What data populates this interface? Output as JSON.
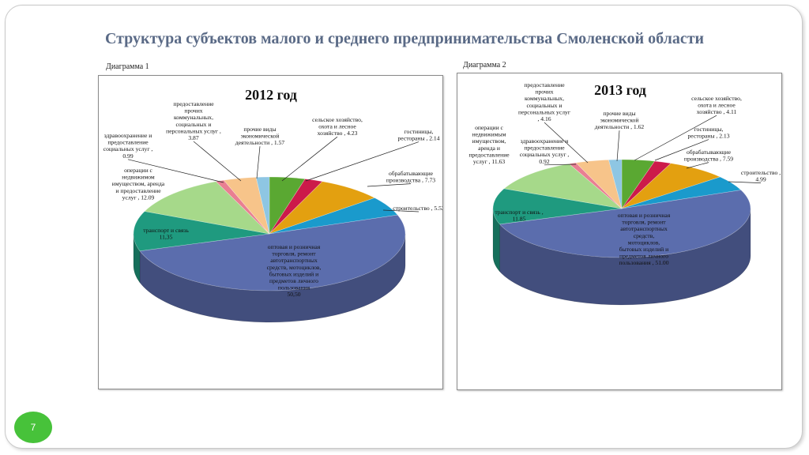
{
  "title": "Структура субъектов малого и среднего предпринимательства Смоленской области",
  "page_number": "7",
  "chart_data": [
    {
      "type": "pie",
      "caption": "Диаграмма 1",
      "title": "2012 год",
      "slices": [
        {
          "label": "сельское хозяйство, охота и лесное хозяйство , 4.23",
          "value": 4.23,
          "color": "#5aa832"
        },
        {
          "label": "гостиницы, рестораны , 2.14",
          "value": 2.14,
          "color": "#cc1a4a"
        },
        {
          "label": "обрабатывающие производства , 7.73",
          "value": 7.73,
          "color": "#e3a010"
        },
        {
          "label": "строительство , 5.52",
          "value": 5.52,
          "color": "#1a9acc"
        },
        {
          "label": "оптовая и розничная торговля, ремонт автотранспортных средств, мотоциклов, бытовых изделий и предметов личного пользования 50,50",
          "value": 50.5,
          "color": "#5b6dad"
        },
        {
          "label": "транспорт и связь 11,35",
          "value": 11.35,
          "color": "#1f9a7f"
        },
        {
          "label": "операции с недвижимом имуществом, аренда и предоставление услуг , 12.09",
          "value": 12.09,
          "color": "#a6d98a"
        },
        {
          "label": "здравоохранение и предоставление социальных услуг , 0.99",
          "value": 0.99,
          "color": "#e97f92"
        },
        {
          "label": "предоставление прочих коммунальных, социальных и персональных услуг , 3.87",
          "value": 3.87,
          "color": "#f7c48a"
        },
        {
          "label": "прочие виды экономической деятельности , 1.57",
          "value": 1.57,
          "color": "#8ec6e3"
        }
      ]
    },
    {
      "type": "pie",
      "caption": "Диаграмма 2",
      "title": "2013 год",
      "slices": [
        {
          "label": "сельское хозяйство, охота и лесное хозяйство , 4.11",
          "value": 4.11,
          "color": "#5aa832"
        },
        {
          "label": "гостиницы, рестораны , 2.13",
          "value": 2.13,
          "color": "#cc1a4a"
        },
        {
          "label": "обрабатывающие производства , 7.59",
          "value": 7.59,
          "color": "#e3a010"
        },
        {
          "label": "строительство , 4.99",
          "value": 4.99,
          "color": "#1a9acc"
        },
        {
          "label": "оптовая и розничная торговля, ремонт автотранспортных средств, мотоциклов, бытовых изделий и предметов личного пользования , 51.00",
          "value": 51.0,
          "color": "#5b6dad"
        },
        {
          "label": "транспорт и связь , 11.85",
          "value": 11.85,
          "color": "#1f9a7f"
        },
        {
          "label": "операции с недвижимым имуществом, аренда и предоставление услуг , 11.63",
          "value": 11.63,
          "color": "#a6d98a"
        },
        {
          "label": "здравоохранение и предоставление социальных услуг , 0.92",
          "value": 0.92,
          "color": "#e97f92"
        },
        {
          "label": "предоставление прочих коммунальных, социальных и персональных услуг , 4.16",
          "value": 4.16,
          "color": "#f7c48a"
        },
        {
          "label": "прочие виды экономической деятельности , 1.62",
          "value": 1.62,
          "color": "#8ec6e3"
        }
      ]
    }
  ]
}
